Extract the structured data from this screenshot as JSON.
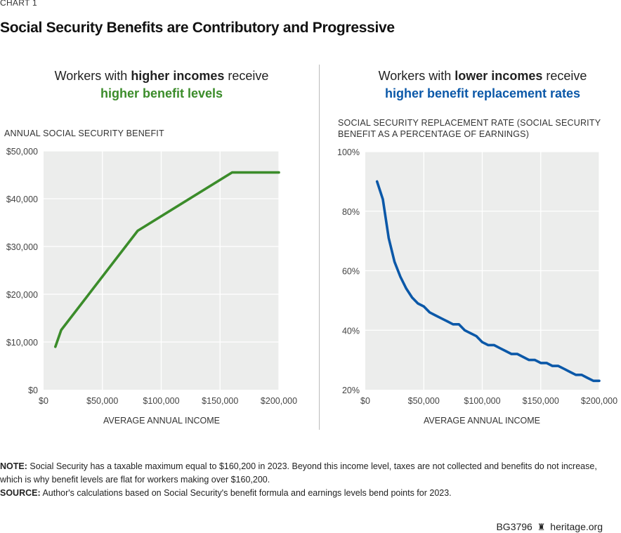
{
  "kicker": "CHART 1",
  "title": "Social Security Benefits are Contributory and Progressive",
  "left_panel": {
    "subtitle_prefix": "Workers with ",
    "subtitle_bold": "higher incomes",
    "subtitle_suffix": " receive",
    "highlight": "higher benefit levels"
  },
  "right_panel": {
    "subtitle_prefix": "Workers with ",
    "subtitle_bold": "lower incomes",
    "subtitle_suffix": " receive",
    "highlight": "higher benefit replacement rates"
  },
  "colors": {
    "green": "#3b8c2a",
    "blue": "#0b58a8",
    "plot_bg": "#ecedec",
    "grid": "#ffffff"
  },
  "chart_data": [
    {
      "type": "line",
      "ylabel": "ANNUAL SOCIAL SECURITY BENEFIT",
      "xlabel": "AVERAGE ANNUAL INCOME",
      "xlim": [
        0,
        200000
      ],
      "ylim": [
        0,
        50000
      ],
      "xticks": [
        0,
        50000,
        100000,
        150000,
        200000
      ],
      "xtick_labels": [
        "$0",
        "$50,000",
        "$100,000",
        "$150,000",
        "$200,000"
      ],
      "yticks": [
        0,
        10000,
        20000,
        30000,
        40000,
        50000
      ],
      "ytick_labels": [
        "$0",
        "$10,000",
        "$20,000",
        "$30,000",
        "$40,000",
        "$50,000"
      ],
      "grid": true,
      "series": [
        {
          "color": "#3b8c2a",
          "x": [
            10000,
            15000,
            80000,
            160200,
            200000
          ],
          "y": [
            9000,
            12500,
            33300,
            45500,
            45500
          ]
        }
      ]
    },
    {
      "type": "line",
      "ylabel": "SOCIAL SECURITY REPLACEMENT RATE (SOCIAL SECURITY BENEFIT AS A PERCENTAGE OF EARNINGS)",
      "xlabel": "AVERAGE ANNUAL INCOME",
      "xlim": [
        0,
        200000
      ],
      "ylim": [
        20,
        100
      ],
      "xticks": [
        0,
        50000,
        100000,
        150000,
        200000
      ],
      "xtick_labels": [
        "$0",
        "$50,000",
        "$100,000",
        "$150,000",
        "$200,000"
      ],
      "yticks": [
        20,
        40,
        60,
        80,
        100
      ],
      "ytick_labels": [
        "20%",
        "40%",
        "60%",
        "80%",
        "100%"
      ],
      "grid": true,
      "series": [
        {
          "color": "#0b58a8",
          "x": [
            10000,
            15000,
            20000,
            25000,
            30000,
            35000,
            40000,
            45000,
            50000,
            55000,
            60000,
            65000,
            70000,
            75000,
            80000,
            85000,
            90000,
            95000,
            100000,
            105000,
            110000,
            115000,
            120000,
            125000,
            130000,
            135000,
            140000,
            145000,
            150000,
            155000,
            160000,
            165000,
            170000,
            175000,
            180000,
            185000,
            190000,
            195000,
            200000
          ],
          "y": [
            90,
            84,
            71,
            63,
            58,
            54,
            51,
            49,
            48,
            46,
            45,
            44,
            43,
            42,
            42,
            40,
            39,
            38,
            36,
            35,
            35,
            34,
            33,
            32,
            32,
            31,
            30,
            30,
            29,
            29,
            28,
            28,
            27,
            26,
            25,
            25,
            24,
            23,
            23
          ]
        }
      ]
    }
  ],
  "note_label": "NOTE:",
  "note_text": " Social Security has a taxable maximum equal to $160,200 in 2023. Beyond this income level, taxes are not collected and benefits do not increase, which is why benefit levels are flat for workers making over $160,200.",
  "source_label": "SOURCE:",
  "source_text": " Author's calculations based on Social Security's benefit formula and earnings levels bend points for 2023.",
  "footer": {
    "code": "BG3796",
    "icon": "liberty-bell-icon",
    "site": "heritage.org"
  }
}
